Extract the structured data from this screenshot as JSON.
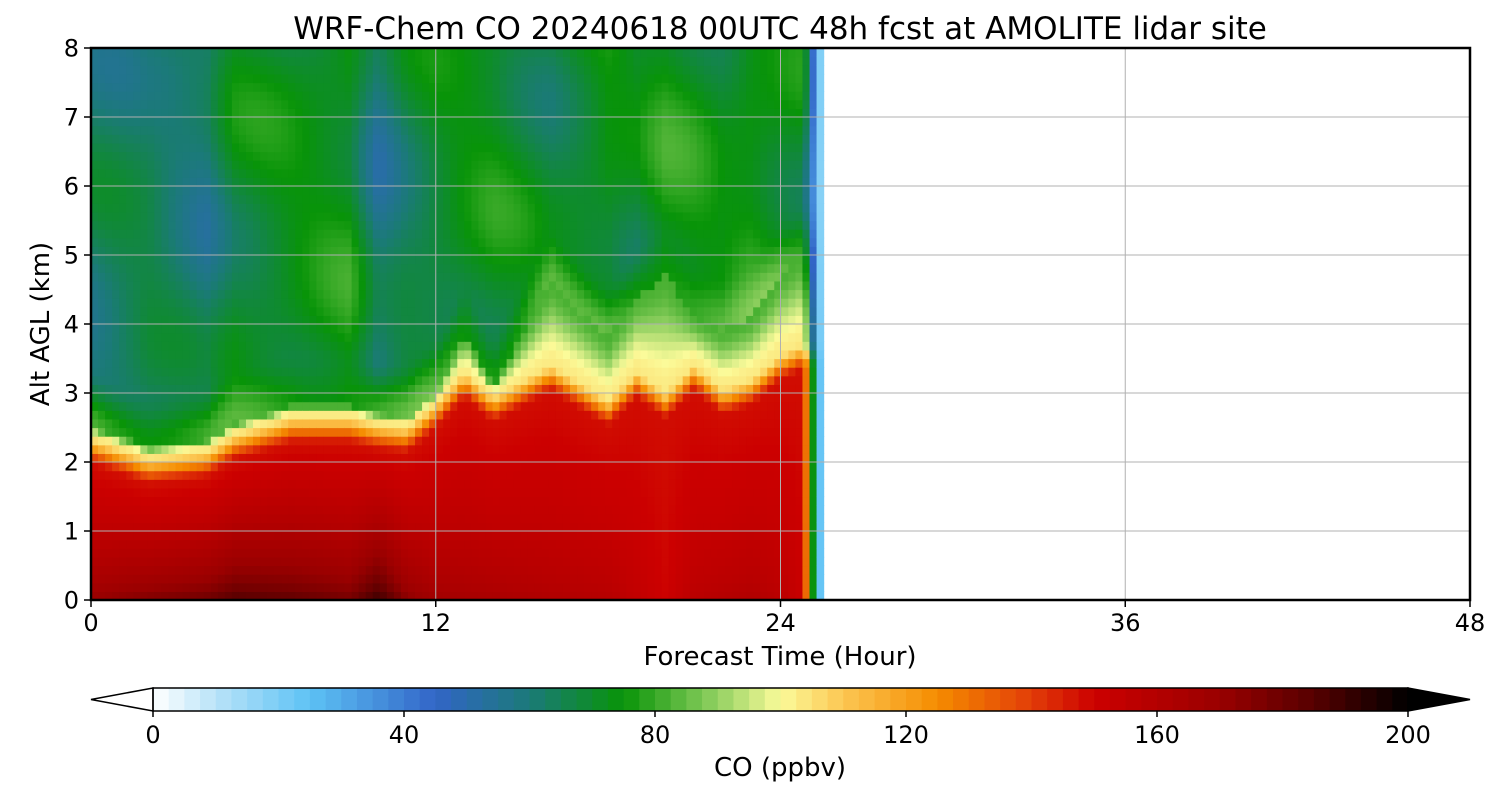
{
  "chart_data": {
    "type": "heatmap",
    "title": "WRF-Chem CO  20240618 00UTC 48h fcst at AMOLITE lidar site",
    "xlabel": "Forecast Time (Hour)",
    "ylabel": "Alt AGL (km)",
    "xlim": [
      0,
      48
    ],
    "ylim": [
      0,
      8
    ],
    "x_ticks": [
      "0",
      "12",
      "24",
      "36",
      "48"
    ],
    "y_ticks": [
      "0",
      "1",
      "2",
      "3",
      "4",
      "5",
      "6",
      "7",
      "8"
    ],
    "grid": true,
    "data_extent_hours": [
      0,
      25.5
    ],
    "colorbar": {
      "label": "CO  (ppbv)",
      "range": [
        0,
        200
      ],
      "ticks": [
        "0",
        "40",
        "80",
        "120",
        "160",
        "200"
      ],
      "extend": "both",
      "under_color": "#ffffff",
      "over_color": "#000000",
      "color_stops": [
        {
          "value": 0,
          "color": "#ffffff"
        },
        {
          "value": 10,
          "color": "#b9e3f8"
        },
        {
          "value": 25,
          "color": "#5dc2f5"
        },
        {
          "value": 45,
          "color": "#3265c7"
        },
        {
          "value": 60,
          "color": "#1b7a78"
        },
        {
          "value": 75,
          "color": "#089408"
        },
        {
          "value": 90,
          "color": "#93d162"
        },
        {
          "value": 100,
          "color": "#fbfb9a"
        },
        {
          "value": 110,
          "color": "#fcc652"
        },
        {
          "value": 125,
          "color": "#f58c00"
        },
        {
          "value": 140,
          "color": "#e23d08"
        },
        {
          "value": 150,
          "color": "#cc0000"
        },
        {
          "value": 170,
          "color": "#9a0000"
        },
        {
          "value": 185,
          "color": "#560000"
        },
        {
          "value": 200,
          "color": "#000000"
        }
      ]
    },
    "profiles": {
      "hours": [
        0,
        2,
        4,
        5,
        7,
        9,
        10,
        11,
        12,
        13,
        14,
        16,
        18,
        19,
        20,
        21,
        22,
        23,
        24,
        25
      ],
      "pbl_top_km": [
        2.4,
        2.1,
        2.2,
        2.45,
        2.7,
        2.7,
        2.6,
        2.55,
        2.9,
        3.35,
        3.0,
        3.45,
        2.95,
        3.35,
        3.05,
        3.45,
        3.1,
        3.25,
        3.6,
        3.8
      ],
      "plume_top_km": [
        2.5,
        2.2,
        2.3,
        2.55,
        2.8,
        2.8,
        2.7,
        2.65,
        3.0,
        3.9,
        3.1,
        4.6,
        3.8,
        4.4,
        4.7,
        4.1,
        3.9,
        4.1,
        4.7,
        5.1
      ],
      "surface_ppbv": [
        172,
        178,
        182,
        188,
        185,
        180,
        193,
        175,
        168,
        166,
        165,
        162,
        160,
        155,
        150,
        158,
        160,
        162,
        158,
        150
      ],
      "free_trop_ppbv": [
        62,
        65,
        60,
        70,
        72,
        74,
        58,
        66,
        70,
        72,
        73,
        68,
        74,
        70,
        75,
        74,
        72,
        76,
        74,
        72
      ]
    }
  }
}
